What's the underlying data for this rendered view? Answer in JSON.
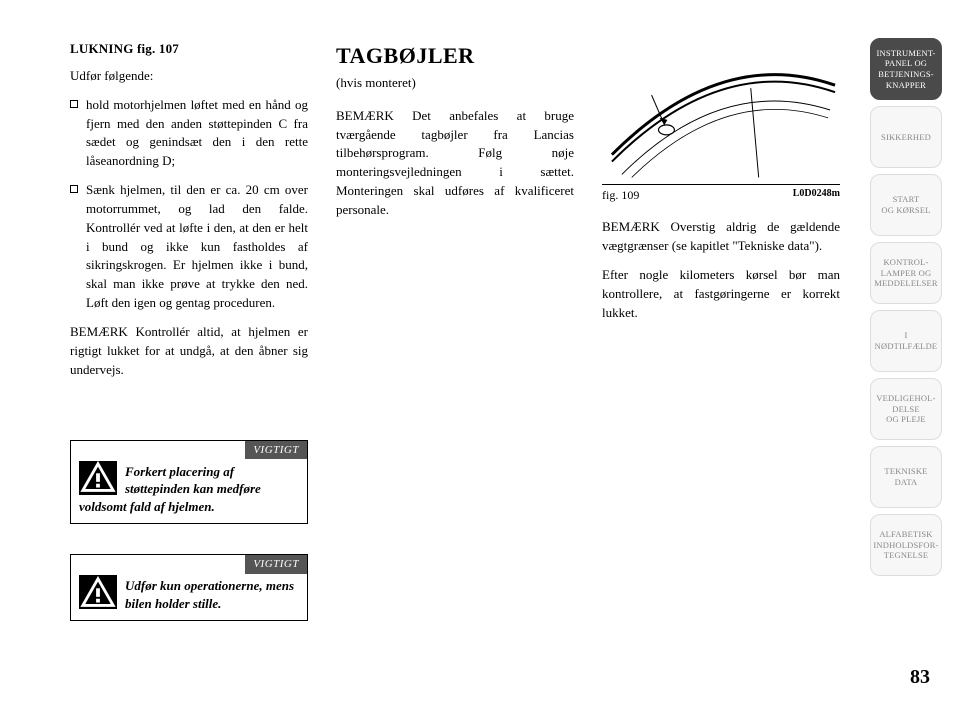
{
  "col1": {
    "heading": "LUKNING fig. 107",
    "intro": "Udfør følgende:",
    "bullets": [
      "hold motorhjelmen løftet med en hånd og fjern med den anden støttepinden C fra sædet og genindsæt den i den rette låseanordning D;",
      "Sænk hjelmen, til den er ca. 20 cm over motorrummet, og lad den falde. Kontrollér ved at løfte i den, at den er helt i bund og ikke kun fastholdes af sikringskrogen. Er hjelmen ikke i bund, skal man ikke prøve at trykke den ned. Løft den igen og gentag proceduren."
    ],
    "note": "BEMÆRK Kontrollér altid, at hjelmen er rigtigt lukket for at undgå, at den åbner sig undervejs.",
    "warn1_label": "VIGTIGT",
    "warn1_text": "Forkert placering af støttepinden kan medføre voldsomt fald af hjelmen.",
    "warn2_label": "VIGTIGT",
    "warn2_text": "Udfør kun operationerne, mens bilen holder stille."
  },
  "col2": {
    "title": "TAGBØJLER",
    "subtitle": "(hvis monteret)",
    "para": "BEMÆRK Det anbefales at bruge tværgående tagbøjler fra Lancias tilbehørsprogram. Følg nøje monteringsvejledningen i sættet. Monteringen skal udføres af kvalificeret personale."
  },
  "col3": {
    "fig_label": "fig. 109",
    "fig_code": "L0D0248m",
    "para1": "BEMÆRK Overstig aldrig de gældende vægtgrænser (se kapitlet \"Tekniske data\").",
    "para2": "Efter nogle kilometers kørsel bør man kontrollere, at fastgøringerne er korrekt lukket."
  },
  "tabs": [
    {
      "label": "INSTRUMENT-\nPANEL OG\nBETJENINGS-\nKNAPPER",
      "active": true
    },
    {
      "label": "SIKKERHED",
      "active": false
    },
    {
      "label": "START\nOG KØRSEL",
      "active": false
    },
    {
      "label": "KONTROL-\nLAMPER OG\nMEDDELELSER",
      "active": false
    },
    {
      "label": "I\nNØDTILFÆLDE",
      "active": false
    },
    {
      "label": "VEDLIGEHOL-\nDELSE\nOG PLEJE",
      "active": false
    },
    {
      "label": "TEKNISKE\nDATA",
      "active": false
    },
    {
      "label": "ALFABETISK\nINDHOLDSFOR-\nTEGNELSE",
      "active": false
    }
  ],
  "page_number": "83",
  "colors": {
    "tab_active_bg": "#4a4a4a",
    "tab_inactive_bg": "#f7f7f7",
    "tab_inactive_fg": "#888888",
    "warn_hdr_bg": "#555555",
    "text": "#000000",
    "bg": "#ffffff"
  }
}
